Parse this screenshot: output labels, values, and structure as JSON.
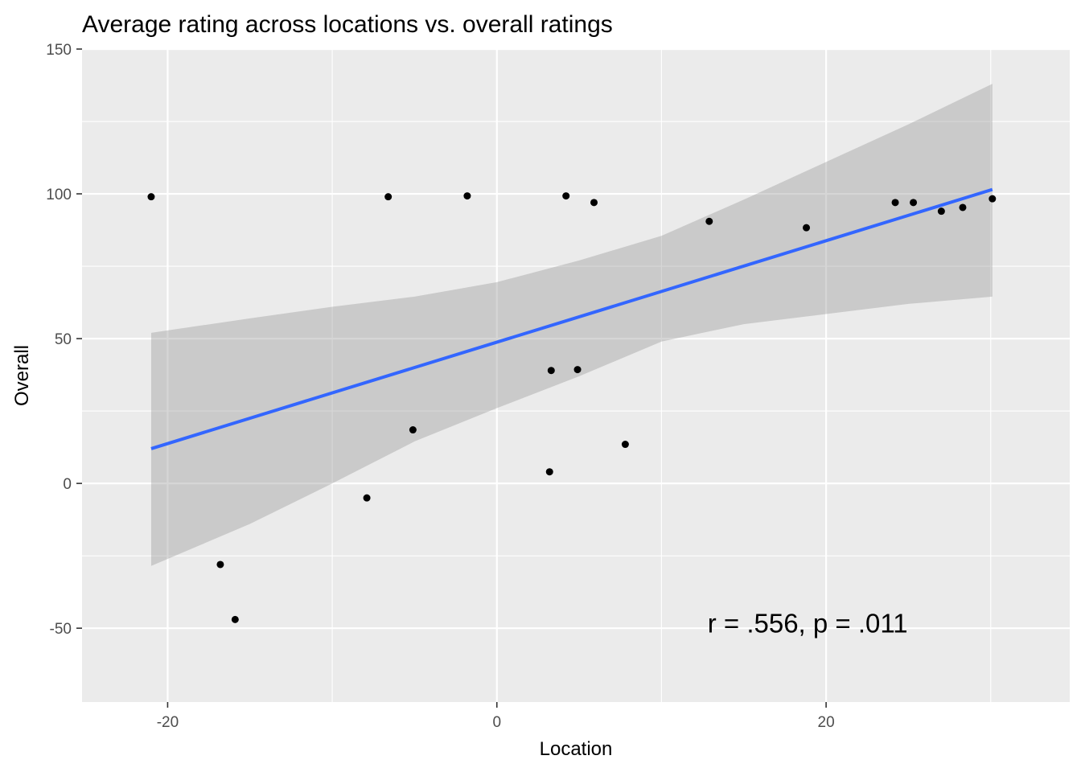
{
  "chart_data": {
    "type": "scatter",
    "title": "Average rating across locations vs. overall ratings",
    "xlabel": "Location",
    "ylabel": "Overall",
    "xlim": [
      -25.2,
      34.8
    ],
    "ylim": [
      -75.5,
      150
    ],
    "x_ticks": [
      {
        "value": -20,
        "label": "-20"
      },
      {
        "value": 0,
        "label": "0"
      },
      {
        "value": 20,
        "label": "20"
      }
    ],
    "x_minor_ticks": [
      -10,
      10,
      30
    ],
    "y_ticks": [
      {
        "value": 150,
        "label": "150"
      },
      {
        "value": 100,
        "label": "100"
      },
      {
        "value": 50,
        "label": "50"
      },
      {
        "value": 0,
        "label": "0"
      },
      {
        "value": -50,
        "label": "-50"
      }
    ],
    "y_minor_ticks": [
      125,
      75,
      25,
      -25
    ],
    "grid": true,
    "colors": {
      "panel_background": "#ebebeb",
      "grid": "#ffffff",
      "points": "#000000",
      "fit_line": "#3366ff",
      "confidence_band": "#c6c6c6"
    },
    "points": [
      {
        "x": -21.0,
        "y": 99
      },
      {
        "x": -16.8,
        "y": -28
      },
      {
        "x": -15.9,
        "y": -47
      },
      {
        "x": -7.9,
        "y": -5
      },
      {
        "x": -6.6,
        "y": 99
      },
      {
        "x": -5.1,
        "y": 18.5
      },
      {
        "x": -1.8,
        "y": 99.3
      },
      {
        "x": 3.2,
        "y": 4
      },
      {
        "x": 3.3,
        "y": 39
      },
      {
        "x": 4.2,
        "y": 99.3
      },
      {
        "x": 4.9,
        "y": 39.3
      },
      {
        "x": 5.9,
        "y": 97
      },
      {
        "x": 7.8,
        "y": 13.5
      },
      {
        "x": 12.9,
        "y": 90.5
      },
      {
        "x": 18.8,
        "y": 88.3
      },
      {
        "x": 24.2,
        "y": 97
      },
      {
        "x": 25.3,
        "y": 97
      },
      {
        "x": 27.0,
        "y": 94
      },
      {
        "x": 28.3,
        "y": 95.3
      },
      {
        "x": 30.1,
        "y": 98.3
      }
    ],
    "fit_line": {
      "series": "linear fit",
      "x": [
        -21.0,
        30.1
      ],
      "y": [
        12,
        101.5
      ]
    },
    "confidence_band": {
      "x": [
        -21.0,
        -15,
        -10,
        -5,
        0,
        5,
        10,
        15,
        20,
        25,
        30.1
      ],
      "upper": [
        52,
        57,
        61,
        64.5,
        69.5,
        77,
        85.5,
        98,
        111,
        124,
        138
      ],
      "lower": [
        -28.5,
        -14,
        0,
        14.5,
        26,
        37,
        49,
        55,
        58.5,
        62,
        64.5
      ]
    },
    "annotations": [
      {
        "text": "r = .556, p = .011",
        "x": 12.8,
        "y": -51.5
      }
    ]
  }
}
